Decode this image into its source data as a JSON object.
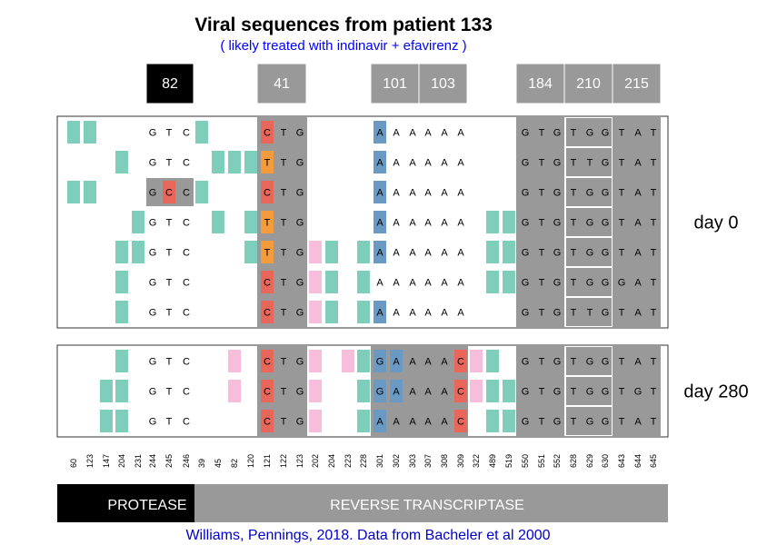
{
  "title": "Viral sequences from patient 133",
  "subtitle": "( likely treated with indinavir + efavirenz )",
  "credit": "Williams, Pennings, 2018. Data from Bacheler et al 2000",
  "colors": {
    "mint": "#7fcdbb",
    "pink": "#f7bedc",
    "A": "#6a9ac4",
    "C": "#e8665a",
    "T": "#f39b3d",
    "G": "#6a9ac4",
    "lavender": "#a99bc8",
    "gray": "#999999",
    "highlight": "#000000"
  },
  "positions": [
    "60",
    "123",
    "147",
    "204",
    "231",
    "244",
    "245",
    "246",
    "39",
    "45",
    "82",
    "120",
    "121",
    "122",
    "123",
    "202",
    "204",
    "223",
    "228",
    "301",
    "302",
    "303",
    "307",
    "308",
    "309",
    "322",
    "489",
    "519",
    "550",
    "551",
    "552",
    "628",
    "629",
    "630",
    "643",
    "644",
    "645"
  ],
  "region_labels": {
    "protease": "PROTEASE",
    "rt": "REVERSE TRANSCRIPTASE"
  },
  "codon_labels": [
    {
      "label": "82",
      "highlight": true
    },
    {
      "label": "41",
      "highlight": false
    },
    {
      "label": "101",
      "highlight": false
    },
    {
      "label": "103",
      "highlight": false
    },
    {
      "label": "184",
      "highlight": false
    },
    {
      "label": "210",
      "highlight": false
    },
    {
      "label": "215",
      "highlight": false
    }
  ],
  "panels": [
    {
      "label": "day 0",
      "rows": [
        {
          "syn": [
            0,
            1,
            8
          ],
          "b": [
            "G",
            "T",
            "C",
            "C",
            "T",
            "G",
            "A",
            "A",
            "A",
            "A",
            "A",
            "A",
            "G",
            "T",
            "G",
            "T",
            "G",
            "G",
            "T",
            "A",
            "T"
          ],
          "hl": {
            "12": "C",
            "16": "G",
            "18": "T",
            "19": "A"
          },
          "npink": []
        },
        {
          "syn": [
            3,
            9,
            10,
            11
          ],
          "b": [
            "G",
            "T",
            "C",
            "T",
            "T",
            "G",
            "A",
            "A",
            "A",
            "A",
            "A",
            "A",
            "G",
            "T",
            "G",
            "T",
            "T",
            "G",
            "T",
            "A",
            "T"
          ],
          "hl": {
            "12": "T",
            "16": "T",
            "18": "T",
            "19": "A"
          },
          "npink": []
        },
        {
          "syn": [
            0,
            1,
            8
          ],
          "b": [
            "G",
            "C",
            "C",
            "C",
            "T",
            "G",
            "A",
            "A",
            "A",
            "A",
            "A",
            "A",
            "G",
            "T",
            "G",
            "T",
            "G",
            "G",
            "T",
            "A",
            "T"
          ],
          "hl": {
            "6": "C",
            "12": "C",
            "16": "G",
            "18": "T",
            "19": "A"
          },
          "npink": [],
          "box0": true
        },
        {
          "syn": [
            4,
            9,
            11,
            26,
            27
          ],
          "b": [
            "G",
            "T",
            "C",
            "T",
            "T",
            "G",
            "A",
            "A",
            "A",
            "A",
            "A",
            "A",
            "G",
            "T",
            "G",
            "T",
            "G",
            "G",
            "T",
            "A",
            "T"
          ],
          "hl": {
            "12": "T",
            "16": "G",
            "18": "T",
            "19": "A"
          },
          "npink": []
        },
        {
          "syn": [
            3,
            4,
            11,
            16,
            18,
            26,
            27
          ],
          "b": [
            "G",
            "T",
            "C",
            "T",
            "T",
            "G",
            "A",
            "A",
            "A",
            "A",
            "A",
            "A",
            "G",
            "T",
            "G",
            "T",
            "G",
            "G",
            "T",
            "A",
            "T"
          ],
          "hl": {
            "12": "T",
            "16": "G",
            "18": "T",
            "19": "A"
          },
          "npink": [
            15
          ]
        },
        {
          "syn": [
            3,
            16,
            18,
            26,
            27
          ],
          "b": [
            "G",
            "T",
            "C",
            "C",
            "T",
            "G",
            "A",
            "A",
            "A",
            "A",
            "A",
            "A",
            "G",
            "T",
            "G",
            "T",
            "G",
            "G",
            "G",
            "A",
            "T"
          ],
          "hl": {
            "12": "C",
            "16": "G",
            "18": "G"
          },
          "npink": [
            15
          ]
        },
        {
          "syn": [
            3,
            16,
            18
          ],
          "b": [
            "G",
            "T",
            "C",
            "C",
            "T",
            "G",
            "A",
            "A",
            "A",
            "A",
            "A",
            "A",
            "G",
            "T",
            "G",
            "T",
            "T",
            "G",
            "T",
            "A",
            "T"
          ],
          "hl": {
            "12": "C",
            "16": "T",
            "18": "T",
            "19": "A"
          },
          "npink": [
            15
          ]
        }
      ]
    },
    {
      "label": "day 280",
      "rows": [
        {
          "syn": [
            3,
            18,
            25,
            26
          ],
          "b": [
            "G",
            "T",
            "C",
            "C",
            "T",
            "G",
            "G",
            "A",
            "A",
            "A",
            "A",
            "C",
            "G",
            "T",
            "G",
            "T",
            "G",
            "G",
            "T",
            "A",
            "T"
          ],
          "hl": {
            "12": "C",
            "19": "G",
            "24": "C",
            "16": "G",
            "18": "T",
            "20": "A"
          },
          "npink": [
            10,
            15,
            17,
            25
          ]
        },
        {
          "syn": [
            2,
            3,
            18,
            26,
            27
          ],
          "b": [
            "G",
            "T",
            "C",
            "C",
            "T",
            "G",
            "G",
            "A",
            "A",
            "A",
            "A",
            "C",
            "G",
            "T",
            "G",
            "T",
            "G",
            "G",
            "T",
            "G",
            "T"
          ],
          "hl": {
            "12": "C",
            "19": "G",
            "24": "C",
            "16": "G",
            "18": "T",
            "20": "G"
          },
          "npink": [
            10,
            15,
            25
          ]
        },
        {
          "syn": [
            2,
            3,
            18,
            26,
            27
          ],
          "b": [
            "G",
            "T",
            "C",
            "C",
            "T",
            "G",
            "A",
            "A",
            "A",
            "A",
            "A",
            "C",
            "G",
            "T",
            "G",
            "T",
            "G",
            "G",
            "T",
            "A",
            "T"
          ],
          "hl": {
            "12": "C",
            "24": "C",
            "16": "G",
            "18": "T",
            "19": "A"
          },
          "npink": [
            15
          ]
        }
      ]
    }
  ]
}
